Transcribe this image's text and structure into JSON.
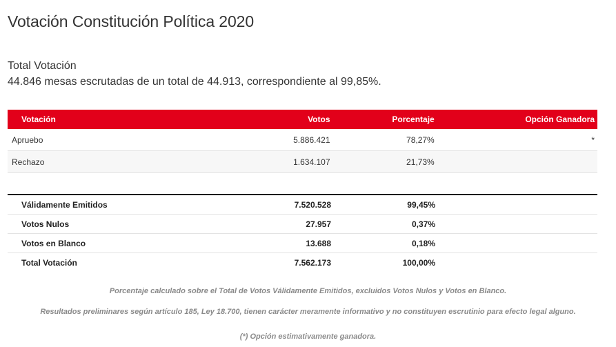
{
  "page": {
    "title": "Votación Constitución Política 2020"
  },
  "summary": {
    "heading": "Total Votación",
    "detail": "44.846 mesas escrutadas de un total de 44.913, correspondiente al 99,85%."
  },
  "results_table": {
    "headers": [
      "Votación",
      "Votos",
      "Porcentaje",
      "Opción Ganadora"
    ],
    "rows": [
      {
        "option": "Apruebo",
        "votes": "5.886.421",
        "percent": "78,27%",
        "winner": "*"
      },
      {
        "option": "Rechazo",
        "votes": "1.634.107",
        "percent": "21,73%",
        "winner": ""
      }
    ]
  },
  "totals_table": {
    "rows": [
      {
        "label": "Válidamente Emitidos",
        "votes": "7.520.528",
        "percent": "99,45%"
      },
      {
        "label": "Votos Nulos",
        "votes": "27.957",
        "percent": "0,37%"
      },
      {
        "label": "Votos en Blanco",
        "votes": "13.688",
        "percent": "0,18%"
      },
      {
        "label": "Total Votación",
        "votes": "7.562.173",
        "percent": "100,00%"
      }
    ]
  },
  "notes": [
    "Porcentaje calculado sobre el Total de Votos Válidamente Emitidos, excluidos Votos Nulos y Votos en Blanco.",
    "Resultados preliminares según artículo 185, Ley 18.700, tienen carácter meramente informativo y no constituyen escrutinio para efecto legal alguno.",
    "(*) Opción estimativamente ganadora."
  ],
  "colors": {
    "header_bg": "#e2001a",
    "header_text": "#ffffff",
    "note_text": "#8a8a8a"
  }
}
